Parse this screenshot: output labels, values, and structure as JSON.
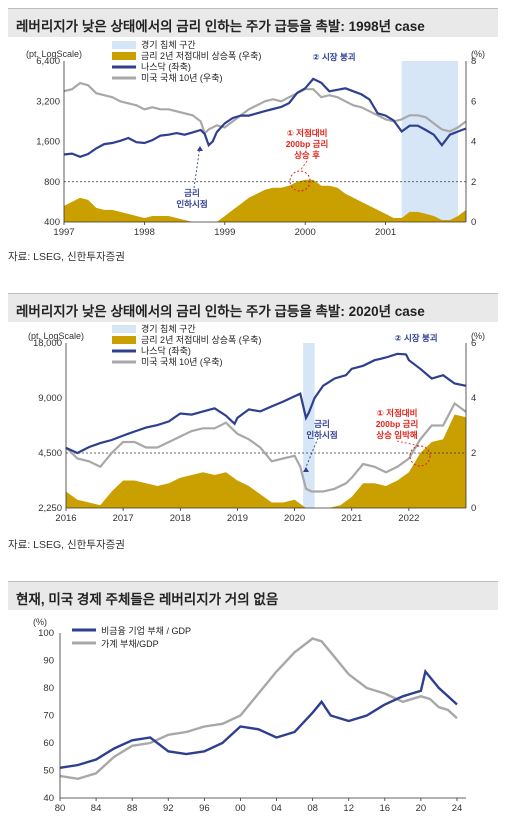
{
  "panel1": {
    "title": "레버리지가 낮은 상태에서의 금리 인하는 주가 급등을 촉발: 1998년 case",
    "source": "자료: LSEG, 신한투자증권"
  },
  "panel2": {
    "title": "레버리지가 낮은 상태에서의 금리 인하는 주가 급등을 촉발: 2020년 case",
    "source": "자료: LSEG, 신한투자증권"
  },
  "panel3": {
    "title": "현재, 미국 경제 주체들은 레버리지가 거의 없음"
  },
  "colors": {
    "nasdaq": "#2e3f8f",
    "treasury": "#a8a8a8",
    "spread": "#c9a000",
    "recession": "#d6e6f6",
    "red": "#e0241b",
    "title_bg": "#e9e9ea"
  },
  "chart_data": [
    {
      "type": "line",
      "left_unit": "(pt, LogScale)",
      "right_unit": "(%)",
      "left_scale": "log",
      "left_ticks": [
        "6,400",
        "3,200",
        "1,600",
        "800",
        "400"
      ],
      "left_tick_values": [
        6400,
        3200,
        1600,
        800,
        400
      ],
      "right_ticks": [
        "8",
        "6",
        "4",
        "2",
        "0"
      ],
      "right_tick_values": [
        8,
        6,
        4,
        2,
        0
      ],
      "x_ticks": [
        "1997",
        "1998",
        "1999",
        "2000",
        "2001"
      ],
      "x_tick_values": [
        1997,
        1998,
        1999,
        2000,
        2001
      ],
      "xlim": [
        1997,
        2002
      ],
      "ylim_left": [
        400,
        6400
      ],
      "ylim_right": [
        0,
        8
      ],
      "reference_line_right": 2,
      "legend": [
        "경기 침체 구간",
        "금리 2년 저점대비 상승폭 (우축)",
        "나스닥 (좌축)",
        "미국 국채 10년 (우축)"
      ],
      "annotations": {
        "top": "② 시장 붕괴",
        "mid": "① 저점대비\n200bp 금리\n상승 후",
        "cut": "금리\n인하시점"
      },
      "recession": [
        2001.2,
        2001.9
      ],
      "series": [
        {
          "name": "나스닥 (좌축)",
          "axis": "left",
          "x": [
            1997,
            1997.1,
            1997.2,
            1997.3,
            1997.4,
            1997.5,
            1997.6,
            1997.7,
            1997.8,
            1997.9,
            1998,
            1998.1,
            1998.2,
            1998.3,
            1998.4,
            1998.5,
            1998.6,
            1998.7,
            1998.75,
            1998.8,
            1998.85,
            1998.9,
            1999,
            1999.1,
            1999.2,
            1999.3,
            1999.4,
            1999.5,
            1999.6,
            1999.7,
            1999.8,
            1999.9,
            2000,
            2000.1,
            2000.2,
            2000.3,
            2000.4,
            2000.5,
            2000.6,
            2000.7,
            2000.8,
            2000.9,
            2001,
            2001.1,
            2001.2,
            2001.3,
            2001.4,
            2001.5,
            2001.6,
            2001.7,
            2001.8,
            2001.9,
            2002
          ],
          "values": [
            1280,
            1300,
            1230,
            1290,
            1420,
            1530,
            1560,
            1620,
            1700,
            1580,
            1560,
            1640,
            1770,
            1800,
            1850,
            1800,
            1870,
            1950,
            1820,
            1500,
            1600,
            1880,
            2190,
            2400,
            2500,
            2500,
            2600,
            2700,
            2800,
            2900,
            3100,
            3700,
            4000,
            4700,
            4400,
            3800,
            3900,
            4000,
            3800,
            3600,
            3300,
            2600,
            2500,
            2300,
            1900,
            2100,
            2100,
            1950,
            1800,
            1500,
            1800,
            1900,
            2000
          ]
        },
        {
          "name": "미국 국채 10년 (우축)",
          "axis": "right",
          "x": [
            1997,
            1997.1,
            1997.2,
            1997.3,
            1997.4,
            1997.5,
            1997.6,
            1997.7,
            1997.8,
            1997.9,
            1998,
            1998.1,
            1998.2,
            1998.3,
            1998.4,
            1998.5,
            1998.6,
            1998.7,
            1998.75,
            1998.8,
            1998.9,
            1999,
            1999.1,
            1999.2,
            1999.3,
            1999.4,
            1999.5,
            1999.6,
            1999.7,
            1999.8,
            1999.9,
            2000,
            2000.1,
            2000.2,
            2000.3,
            2000.4,
            2000.5,
            2000.6,
            2000.7,
            2000.8,
            2000.9,
            2001,
            2001.1,
            2001.2,
            2001.3,
            2001.4,
            2001.5,
            2001.6,
            2001.7,
            2001.8,
            2001.9,
            2002
          ],
          "values": [
            6.5,
            6.6,
            6.9,
            6.8,
            6.4,
            6.3,
            6.2,
            6.0,
            5.9,
            5.8,
            5.6,
            5.7,
            5.6,
            5.6,
            5.5,
            5.4,
            5.3,
            5.0,
            4.4,
            4.6,
            4.8,
            4.7,
            5.0,
            5.3,
            5.6,
            5.8,
            6.0,
            6.1,
            6.0,
            6.2,
            6.4,
            6.6,
            6.6,
            6.2,
            6.3,
            6.2,
            6.0,
            5.8,
            5.7,
            5.5,
            5.3,
            5.1,
            5.0,
            5.1,
            5.3,
            5.3,
            5.2,
            4.9,
            4.6,
            4.5,
            4.7,
            5.0
          ]
        },
        {
          "name": "금리 2년 저점대비 상승폭 (우축)",
          "axis": "right",
          "x": [
            1997,
            1997.1,
            1997.2,
            1997.3,
            1997.4,
            1997.5,
            1997.6,
            1997.7,
            1997.8,
            1997.9,
            1998,
            1998.1,
            1998.2,
            1998.3,
            1998.4,
            1998.5,
            1998.6,
            1998.7,
            1998.8,
            1998.9,
            1999,
            1999.1,
            1999.2,
            1999.3,
            1999.4,
            1999.5,
            1999.6,
            1999.7,
            1999.8,
            1999.9,
            2000,
            2000.1,
            2000.2,
            2000.3,
            2000.4,
            2000.5,
            2000.6,
            2000.7,
            2000.8,
            2000.9,
            2001,
            2001.1,
            2001.2,
            2001.3,
            2001.4,
            2001.5,
            2001.6,
            2001.7,
            2001.8,
            2001.9,
            2002
          ],
          "values": [
            0.8,
            1.0,
            1.2,
            1.1,
            0.7,
            0.6,
            0.6,
            0.5,
            0.4,
            0.3,
            0.2,
            0.3,
            0.3,
            0.3,
            0.2,
            0.1,
            0.0,
            0.0,
            0.0,
            0.0,
            0.3,
            0.6,
            0.9,
            1.2,
            1.4,
            1.6,
            1.7,
            1.7,
            1.8,
            2.0,
            2.1,
            2.1,
            1.8,
            1.8,
            1.7,
            1.4,
            1.2,
            1.0,
            0.8,
            0.6,
            0.4,
            0.2,
            0.2,
            0.5,
            0.5,
            0.4,
            0.3,
            0.1,
            0.1,
            0.3,
            0.6
          ]
        }
      ]
    },
    {
      "type": "line",
      "left_unit": "(pt, LogScale)",
      "right_unit": "(%)",
      "left_scale": "log",
      "left_ticks": [
        "18,000",
        "9,000",
        "4,500",
        "2,250"
      ],
      "left_tick_values": [
        18000,
        9000,
        4500,
        2250
      ],
      "right_ticks": [
        "6",
        "4",
        "2",
        "0"
      ],
      "right_tick_values": [
        6,
        4,
        2,
        0
      ],
      "x_ticks": [
        "2016",
        "2017",
        "2018",
        "2019",
        "2020",
        "2021",
        "2022"
      ],
      "x_tick_values": [
        2016,
        2017,
        2018,
        2019,
        2020,
        2021,
        2022
      ],
      "xlim": [
        2016,
        2023
      ],
      "ylim_left": [
        2250,
        18000
      ],
      "ylim_right": [
        0,
        6
      ],
      "reference_line_right": 2,
      "legend": [
        "경기 침체 구간",
        "금리 2년 저점대비 상승폭 (우축)",
        "나스닥 (좌축)",
        "미국 국채 10년 (우축)"
      ],
      "annotations": {
        "top": "② 시장 붕괴",
        "mid": "① 저점대비\n200bp 금리\n상승 임박해",
        "cut": "금리\n인하시점"
      },
      "recession": [
        2020.15,
        2020.35
      ],
      "series": [
        {
          "name": "나스닥 (좌축)",
          "axis": "left",
          "x": [
            2016,
            2016.2,
            2016.4,
            2016.6,
            2016.8,
            2017,
            2017.2,
            2017.4,
            2017.6,
            2017.8,
            2018,
            2018.2,
            2018.4,
            2018.6,
            2018.8,
            2018.95,
            2019,
            2019.2,
            2019.4,
            2019.6,
            2019.8,
            2020,
            2020.1,
            2020.2,
            2020.25,
            2020.35,
            2020.5,
            2020.7,
            2020.9,
            2021,
            2021.2,
            2021.4,
            2021.6,
            2021.8,
            2021.95,
            2022,
            2022.2,
            2022.4,
            2022.6,
            2022.8,
            2023
          ],
          "values": [
            4800,
            4500,
            4850,
            5100,
            5300,
            5600,
            5900,
            6200,
            6400,
            6700,
            7400,
            7300,
            7600,
            7900,
            7200,
            6500,
            7000,
            7800,
            7600,
            8100,
            8600,
            9200,
            9500,
            7000,
            7500,
            9000,
            10500,
            11500,
            12000,
            13000,
            13500,
            14500,
            15000,
            15700,
            15600,
            14500,
            13000,
            11500,
            12000,
            10800,
            10500
          ]
        },
        {
          "name": "미국 국채 10년 (우축)",
          "axis": "right",
          "x": [
            2016,
            2016.2,
            2016.4,
            2016.6,
            2016.8,
            2017,
            2017.2,
            2017.4,
            2017.6,
            2017.8,
            2018,
            2018.2,
            2018.4,
            2018.6,
            2018.8,
            2019,
            2019.2,
            2019.4,
            2019.6,
            2019.8,
            2020,
            2020.1,
            2020.2,
            2020.3,
            2020.5,
            2020.7,
            2020.9,
            2021,
            2021.2,
            2021.4,
            2021.6,
            2021.8,
            2022,
            2022.2,
            2022.4,
            2022.6,
            2022.8,
            2023
          ],
          "values": [
            2.2,
            1.8,
            1.7,
            1.5,
            2.0,
            2.4,
            2.4,
            2.2,
            2.2,
            2.4,
            2.6,
            2.8,
            2.9,
            2.9,
            3.1,
            2.7,
            2.5,
            2.2,
            1.7,
            1.8,
            1.9,
            1.5,
            0.7,
            0.6,
            0.6,
            0.7,
            0.9,
            1.1,
            1.6,
            1.5,
            1.3,
            1.5,
            1.8,
            2.5,
            3.0,
            3.0,
            3.8,
            3.5
          ]
        },
        {
          "name": "금리 2년 저점대비 상승폭 (우축)",
          "axis": "right",
          "x": [
            2016,
            2016.2,
            2016.4,
            2016.6,
            2016.8,
            2017,
            2017.2,
            2017.4,
            2017.6,
            2017.8,
            2018,
            2018.2,
            2018.4,
            2018.6,
            2018.8,
            2019,
            2019.2,
            2019.4,
            2019.6,
            2019.8,
            2020,
            2020.2,
            2020.4,
            2020.6,
            2020.8,
            2021,
            2021.2,
            2021.4,
            2021.6,
            2021.8,
            2022,
            2022.2,
            2022.4,
            2022.6,
            2022.8,
            2023
          ],
          "values": [
            0.6,
            0.3,
            0.2,
            0.1,
            0.6,
            1.0,
            1.0,
            0.9,
            0.8,
            0.9,
            1.1,
            1.2,
            1.3,
            1.2,
            1.3,
            1.0,
            0.8,
            0.5,
            0.2,
            0.2,
            0.3,
            0.0,
            0.0,
            0.0,
            0.1,
            0.4,
            0.9,
            0.9,
            0.8,
            1.0,
            1.3,
            2.0,
            2.4,
            2.5,
            3.4,
            3.3
          ]
        }
      ]
    },
    {
      "type": "line",
      "left_unit": "(%)",
      "ylim": [
        40,
        100
      ],
      "y_ticks": [
        "100",
        "90",
        "80",
        "70",
        "60",
        "50",
        "40"
      ],
      "y_tick_values": [
        100,
        90,
        80,
        70,
        60,
        50,
        40
      ],
      "x_ticks": [
        "80",
        "84",
        "88",
        "92",
        "96",
        "00",
        "04",
        "08",
        "12",
        "16",
        "20",
        "24"
      ],
      "x_tick_values": [
        1980,
        1984,
        1988,
        1992,
        1996,
        2000,
        2004,
        2008,
        2012,
        2016,
        2020,
        2024
      ],
      "xlim": [
        1980,
        2025
      ],
      "legend": [
        "비금융 기업 부채 / GDP",
        "가계 부채/GDP"
      ],
      "series": [
        {
          "name": "비금융 기업 부채 / GDP",
          "x": [
            1980,
            1982,
            1984,
            1986,
            1988,
            1990,
            1992,
            1994,
            1996,
            1998,
            2000,
            2002,
            2004,
            2006,
            2008,
            2009,
            2010,
            2012,
            2014,
            2016,
            2018,
            2019,
            2020,
            2020.5,
            2021,
            2022,
            2023,
            2024
          ],
          "values": [
            51,
            52,
            54,
            58,
            61,
            62,
            57,
            56,
            57,
            60,
            66,
            65,
            62,
            64,
            71,
            75,
            70,
            68,
            70,
            74,
            77,
            78,
            79,
            86,
            84,
            80,
            77,
            74
          ]
        },
        {
          "name": "가계 부채/GDP",
          "x": [
            1980,
            1982,
            1984,
            1986,
            1988,
            1990,
            1992,
            1994,
            1996,
            1998,
            2000,
            2002,
            2004,
            2006,
            2008,
            2009,
            2010,
            2012,
            2014,
            2016,
            2018,
            2020,
            2021,
            2022,
            2023,
            2024
          ],
          "values": [
            48,
            47,
            49,
            55,
            59,
            60,
            63,
            64,
            66,
            67,
            70,
            78,
            86,
            93,
            98,
            97,
            93,
            85,
            80,
            78,
            75,
            77,
            76,
            73,
            72,
            69
          ]
        }
      ]
    }
  ]
}
